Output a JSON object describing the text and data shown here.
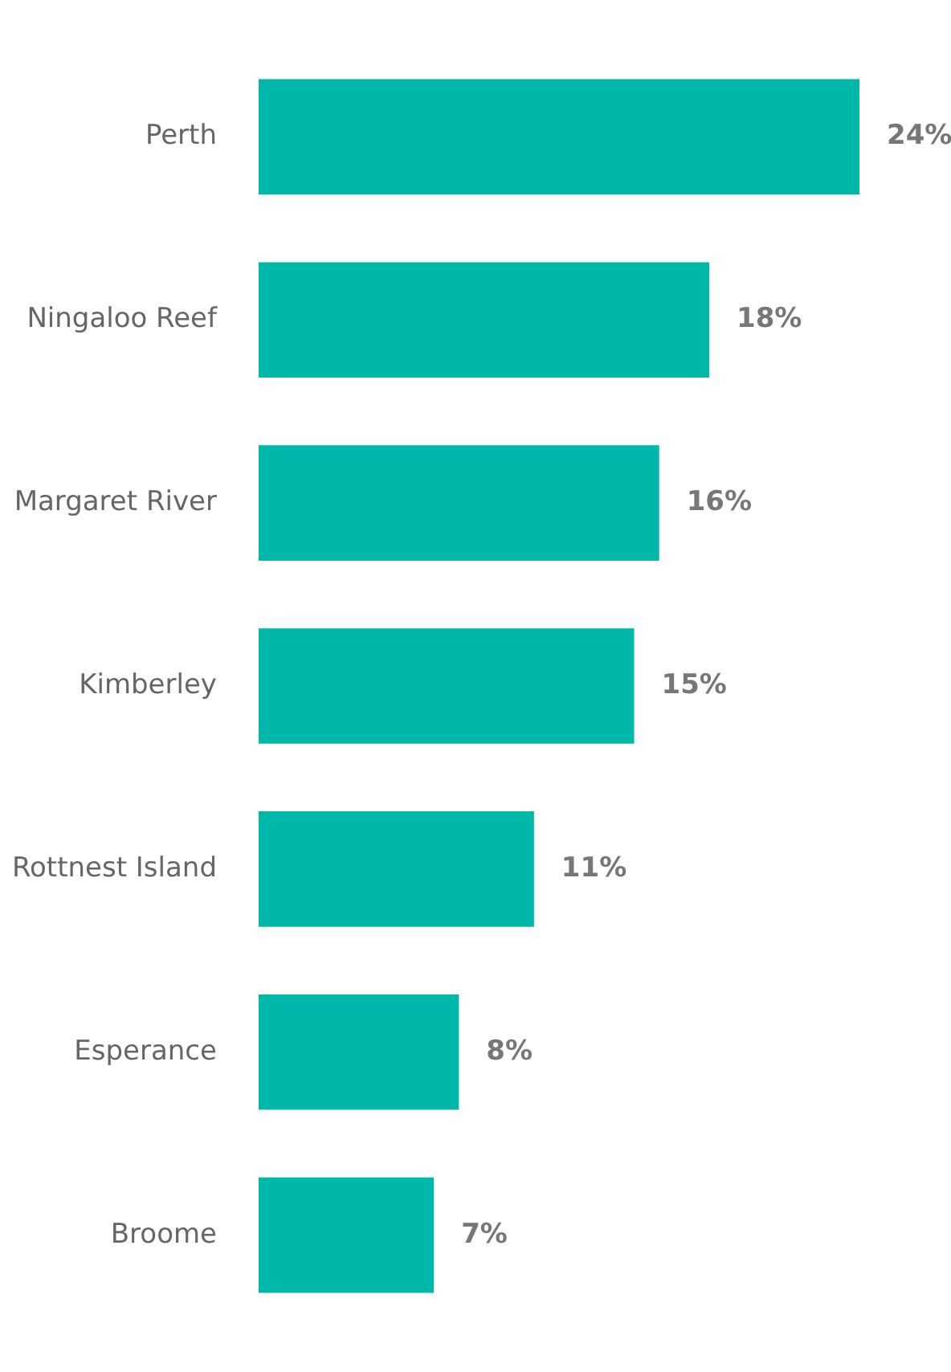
{
  "chart_data": {
    "type": "bar",
    "orientation": "horizontal",
    "categories": [
      "Perth",
      "Ningaloo Reef",
      "Margaret River",
      "Kimberley",
      "Rottnest Island",
      "Esperance",
      "Broome"
    ],
    "values": [
      24,
      18,
      16,
      15,
      11,
      8,
      7
    ],
    "value_labels": [
      "24%",
      "18%",
      "16%",
      "15%",
      "11%",
      "8%",
      "7%"
    ],
    "color": "#00b8aa",
    "xlim": [
      0,
      24
    ],
    "tick_labels": "y",
    "legend": false
  }
}
